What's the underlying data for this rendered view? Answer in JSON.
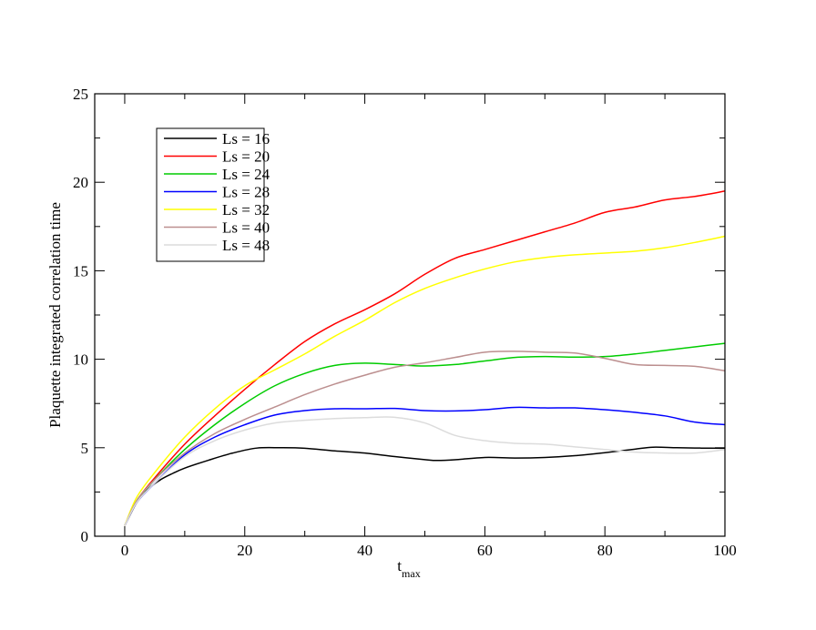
{
  "chart_data": {
    "type": "line",
    "title": "",
    "xlabel_main": "t",
    "xlabel_sub": "max",
    "ylabel": "Plaquette integrated correlation time",
    "xlim": [
      -5,
      100
    ],
    "ylim": [
      0,
      25
    ],
    "x_ticks": [
      0,
      20,
      40,
      60,
      80,
      100
    ],
    "y_ticks": [
      0,
      5,
      10,
      15,
      20,
      25
    ],
    "grid": false,
    "legend_position": "top-left",
    "series": [
      {
        "name": "Ls = 16",
        "color": "#000000",
        "x": [
          0,
          2,
          4,
          6,
          8,
          10,
          14,
          18,
          22,
          26,
          30,
          35,
          40,
          45,
          50,
          52,
          55,
          60,
          65,
          70,
          75,
          80,
          85,
          88,
          92,
          96,
          100
        ],
        "y": [
          0.6,
          1.9,
          2.7,
          3.2,
          3.55,
          3.85,
          4.3,
          4.7,
          4.98,
          5.0,
          4.97,
          4.82,
          4.7,
          4.5,
          4.33,
          4.28,
          4.32,
          4.45,
          4.42,
          4.45,
          4.55,
          4.72,
          4.92,
          5.03,
          5.0,
          4.98,
          4.97
        ]
      },
      {
        "name": "Ls = 20",
        "color": "#ff0000",
        "x": [
          0,
          2,
          5,
          10,
          15,
          20,
          25,
          30,
          35,
          40,
          45,
          50,
          55,
          60,
          65,
          70,
          75,
          80,
          85,
          90,
          95,
          100
        ],
        "y": [
          0.6,
          2.0,
          3.3,
          5.2,
          6.8,
          8.3,
          9.7,
          11.0,
          12.0,
          12.8,
          13.7,
          14.8,
          15.7,
          16.2,
          16.7,
          17.2,
          17.7,
          18.3,
          18.6,
          19.0,
          19.2,
          19.5
        ]
      },
      {
        "name": "Ls = 24",
        "color": "#00cc00",
        "x": [
          0,
          2,
          5,
          10,
          15,
          20,
          25,
          30,
          35,
          40,
          45,
          50,
          55,
          60,
          65,
          70,
          75,
          80,
          85,
          90,
          95,
          100
        ],
        "y": [
          0.6,
          2.0,
          3.2,
          4.9,
          6.3,
          7.5,
          8.5,
          9.2,
          9.65,
          9.78,
          9.7,
          9.62,
          9.7,
          9.9,
          10.1,
          10.15,
          10.12,
          10.15,
          10.3,
          10.5,
          10.7,
          10.9
        ]
      },
      {
        "name": "Ls = 28",
        "color": "#0000ff",
        "x": [
          0,
          2,
          5,
          10,
          15,
          20,
          25,
          30,
          35,
          40,
          45,
          50,
          55,
          60,
          65,
          70,
          75,
          80,
          85,
          90,
          95,
          100
        ],
        "y": [
          0.6,
          1.9,
          3.0,
          4.6,
          5.6,
          6.3,
          6.85,
          7.1,
          7.2,
          7.2,
          7.22,
          7.1,
          7.08,
          7.15,
          7.28,
          7.25,
          7.25,
          7.15,
          7.0,
          6.8,
          6.45,
          6.3
        ]
      },
      {
        "name": "Ls = 32",
        "color": "#ffff00",
        "x": [
          0,
          2,
          5,
          10,
          15,
          20,
          25,
          30,
          35,
          40,
          45,
          50,
          55,
          60,
          65,
          70,
          75,
          80,
          85,
          90,
          95,
          100
        ],
        "y": [
          0.6,
          2.2,
          3.6,
          5.6,
          7.2,
          8.5,
          9.4,
          10.3,
          11.3,
          12.2,
          13.2,
          14.0,
          14.6,
          15.1,
          15.5,
          15.75,
          15.9,
          16.0,
          16.1,
          16.3,
          16.6,
          16.95
        ]
      },
      {
        "name": "Ls = 40",
        "color": "#bc8f8f",
        "x": [
          0,
          2,
          5,
          10,
          15,
          20,
          25,
          30,
          35,
          40,
          45,
          50,
          55,
          60,
          65,
          70,
          75,
          80,
          85,
          90,
          95,
          100
        ],
        "y": [
          0.6,
          2.0,
          3.2,
          4.7,
          5.8,
          6.6,
          7.3,
          8.0,
          8.6,
          9.1,
          9.55,
          9.8,
          10.1,
          10.4,
          10.45,
          10.4,
          10.35,
          10.05,
          9.7,
          9.65,
          9.6,
          9.35
        ]
      },
      {
        "name": "Ls = 48",
        "color": "#dcdcdc",
        "x": [
          0,
          2,
          5,
          10,
          15,
          20,
          25,
          30,
          35,
          40,
          45,
          50,
          55,
          60,
          65,
          70,
          75,
          80,
          85,
          90,
          95,
          100
        ],
        "y": [
          0.6,
          1.9,
          3.0,
          4.5,
          5.4,
          6.0,
          6.4,
          6.55,
          6.65,
          6.7,
          6.72,
          6.4,
          5.7,
          5.4,
          5.25,
          5.2,
          5.05,
          4.9,
          4.75,
          4.7,
          4.7,
          4.9
        ]
      }
    ]
  }
}
